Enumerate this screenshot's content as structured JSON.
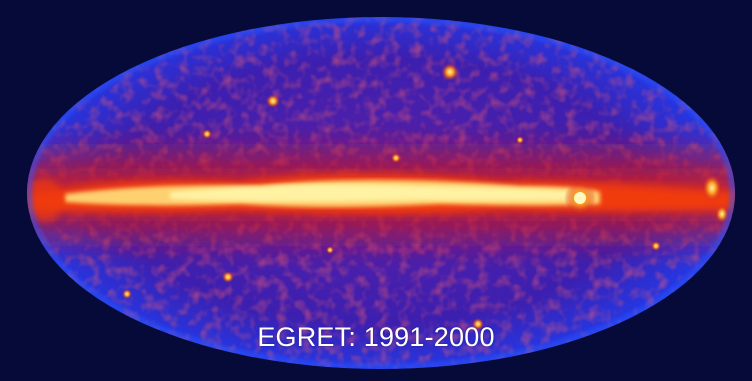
{
  "caption": "EGRET: 1991-2000",
  "colors": {
    "background": "#060a38",
    "sky_base": "#3c1fb0",
    "sky_rim": "#1f3df0",
    "diffuse": "#c81822",
    "plane_warm": "#f03a10",
    "plane_hot": "#ffd070",
    "plane_core": "#fff6a8"
  }
}
